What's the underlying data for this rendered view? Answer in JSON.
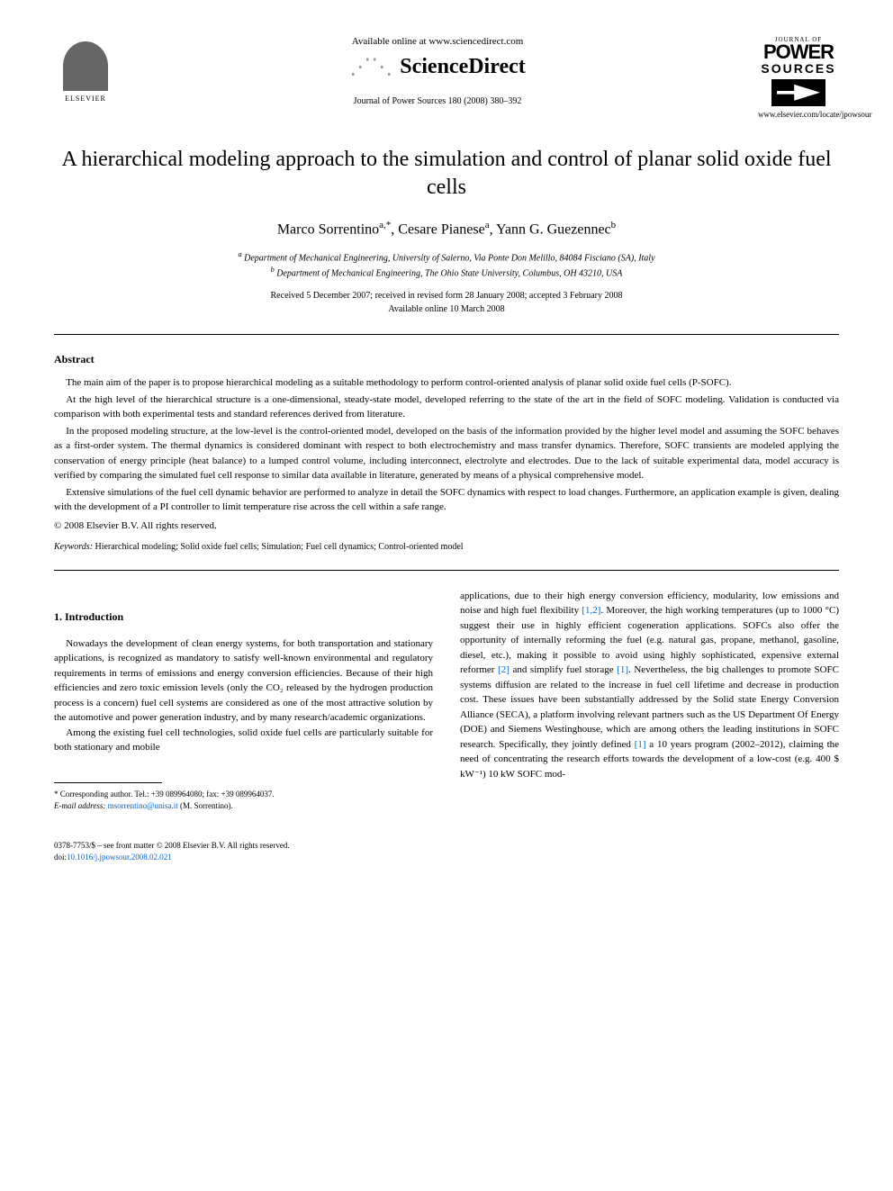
{
  "header": {
    "elsevier_label": "ELSEVIER",
    "available_online": "Available online at www.sciencedirect.com",
    "sciencedirect": "ScienceDirect",
    "journal_reference": "Journal of Power Sources 180 (2008) 380–392",
    "ps_journal_of": "JOURNAL OF",
    "ps_power": "POWER",
    "ps_sources": "SOURCES",
    "website": "www.elsevier.com/locate/jpowsour"
  },
  "title": "A hierarchical modeling approach to the simulation and control of planar solid oxide fuel cells",
  "authors": {
    "a1_name": "Marco Sorrentino",
    "a1_sup": "a,*",
    "a2_name": "Cesare Pianese",
    "a2_sup": "a",
    "a3_name": "Yann G. Guezennec",
    "a3_sup": "b"
  },
  "affiliations": {
    "a": "Department of Mechanical Engineering, University of Salerno, Via Ponte Don Melillo, 84084 Fisciano (SA), Italy",
    "b": "Department of Mechanical Engineering, The Ohio State University, Columbus, OH 43210, USA"
  },
  "dates": {
    "received": "Received 5 December 2007; received in revised form 28 January 2008; accepted 3 February 2008",
    "available": "Available online 10 March 2008"
  },
  "abstract": {
    "heading": "Abstract",
    "p1": "The main aim of the paper is to propose hierarchical modeling as a suitable methodology to perform control-oriented analysis of planar solid oxide fuel cells (P-SOFC).",
    "p2": "At the high level of the hierarchical structure is a one-dimensional, steady-state model, developed referring to the state of the art in the field of SOFC modeling. Validation is conducted via comparison with both experimental tests and standard references derived from literature.",
    "p3": "In the proposed modeling structure, at the low-level is the control-oriented model, developed on the basis of the information provided by the higher level model and assuming the SOFC behaves as a first-order system. The thermal dynamics is considered dominant with respect to both electrochemistry and mass transfer dynamics. Therefore, SOFC transients are modeled applying the conservation of energy principle (heat balance) to a lumped control volume, including interconnect, electrolyte and electrodes. Due to the lack of suitable experimental data, model accuracy is verified by comparing the simulated fuel cell response to similar data available in literature, generated by means of a physical comprehensive model.",
    "p4": "Extensive simulations of the fuel cell dynamic behavior are performed to analyze in detail the SOFC dynamics with respect to load changes. Furthermore, an application example is given, dealing with the development of a PI controller to limit temperature rise across the cell within a safe range.",
    "copyright": "© 2008 Elsevier B.V. All rights reserved."
  },
  "keywords": {
    "label": "Keywords:",
    "text": "Hierarchical modeling; Solid oxide fuel cells; Simulation; Fuel cell dynamics; Control-oriented model"
  },
  "section1": {
    "heading": "1. Introduction",
    "col1_p1": "Nowadays the development of clean energy systems, for both transportation and stationary applications, is recognized as mandatory to satisfy well-known environmental and regulatory requirements in terms of emissions and energy conversion efficiencies. Because of their high efficiencies and zero toxic emission levels (only the CO₂ released by the hydrogen production process is a concern) fuel cell systems are considered as one of the most attractive solution by the automotive and power generation industry, and by many research/academic organizations.",
    "col1_p2": "Among the existing fuel cell technologies, solid oxide fuel cells are particularly suitable for both stationary and mobile",
    "col2_p1_a": "applications, due to their high energy conversion efficiency, modularity, low emissions and noise and high fuel flexibility ",
    "col2_ref1": "[1,2]",
    "col2_p1_b": ". Moreover, the high working temperatures (up to 1000 °C) suggest their use in highly efficient cogeneration applications. SOFCs also offer the opportunity of internally reforming the fuel (e.g. natural gas, propane, methanol, gasoline, diesel, etc.), making it possible to avoid using highly sophisticated, expensive external reformer ",
    "col2_ref2": "[2]",
    "col2_p1_c": " and simplify fuel storage ",
    "col2_ref3": "[1]",
    "col2_p1_d": ". Nevertheless, the big challenges to promote SOFC systems diffusion are related to the increase in fuel cell lifetime and decrease in production cost. These issues have been substantially addressed by the Solid state Energy Conversion Alliance (SECA), a platform involving relevant partners such as the US Department Of Energy (DOE) and Siemens Westinghouse, which are among others the leading institutions in SOFC research. Specifically, they jointly defined ",
    "col2_ref4": "[1]",
    "col2_p1_e": " a 10 years program (2002–2012), claiming the need of concentrating the research efforts towards the development of a low-cost (e.g. 400 $ kW⁻¹) 10 kW SOFC mod-"
  },
  "footnote": {
    "corresponding": "* Corresponding author. Tel.: +39 089964080; fax: +39 089964037.",
    "email_label": "E-mail address:",
    "email": "msorrentino@unisa.it",
    "email_suffix": "(M. Sorrentino)."
  },
  "footer": {
    "line1": "0378-7753/$ – see front matter © 2008 Elsevier B.V. All rights reserved.",
    "doi_prefix": "doi:",
    "doi": "10.1016/j.jpowsour.2008.02.021"
  },
  "colors": {
    "link": "#0066cc",
    "text": "#000000",
    "background": "#ffffff"
  }
}
